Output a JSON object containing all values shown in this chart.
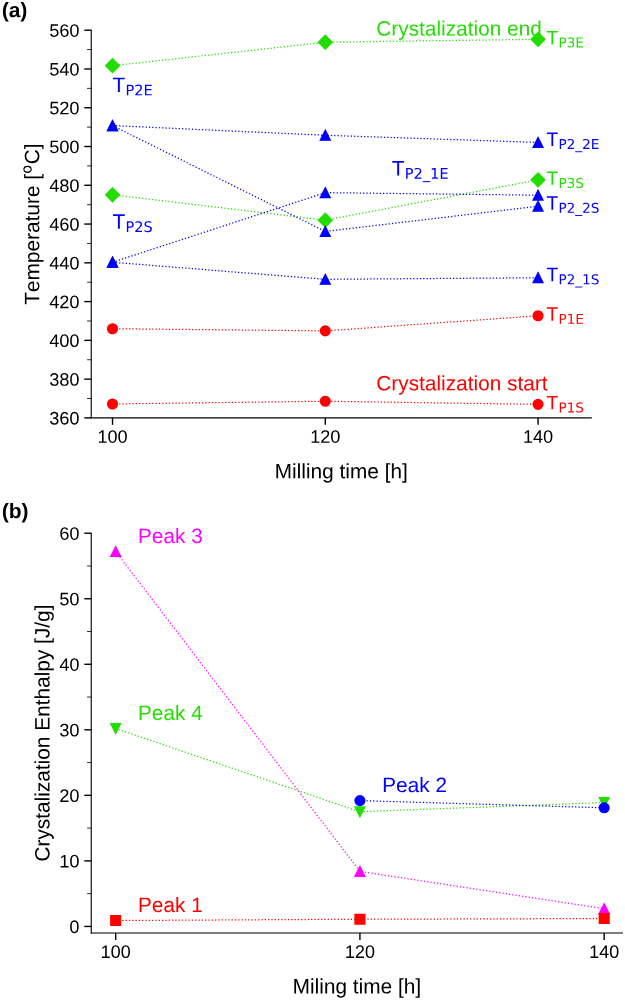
{
  "chart_data": [
    {
      "type": "line",
      "title": "(a)",
      "xlabel": "Milling time [h]",
      "ylabel": "Temperature [$^{o}$C]",
      "x": [
        100,
        120,
        140
      ],
      "xlim": [
        98,
        145
      ],
      "xticks": [
        100,
        120,
        140
      ],
      "ylim": [
        360,
        560
      ],
      "yticks": [
        360,
        380,
        400,
        420,
        440,
        460,
        480,
        500,
        520,
        540,
        560
      ],
      "line_style": "dotted",
      "grid": false,
      "series": [
        {
          "name": "T$_{P3E}$",
          "color": "#22dd00",
          "marker": "diamond",
          "values": [
            541.7,
            553.8,
            555.3
          ]
        },
        {
          "name": "T$_{P2_2E}$",
          "color": "#0000ff",
          "marker": "triangle",
          "values": [
            510.8,
            505.8,
            502.1
          ]
        },
        {
          "name": "T$_{P3S}$",
          "color": "#22dd00",
          "marker": "diamond",
          "values": [
            475.1,
            462,
            482.8
          ]
        },
        {
          "name": "T$_{P2_1E}$",
          "color": "#0000ff",
          "marker": "triangle",
          "values": [
            440.3,
            476.2,
            474.9
          ]
        },
        {
          "name": "T$_{P2_2S}$",
          "color": "#0000ff",
          "marker": "triangle",
          "values": [
            510.8,
            456.2,
            469.2
          ]
        },
        {
          "name": "T$_{P2_1S}$",
          "color": "#0000ff",
          "marker": "triangle",
          "values": [
            440.3,
            431.5,
            432.3
          ]
        },
        {
          "name": "T$_{P1E}$",
          "color": "#ff0000",
          "marker": "circle",
          "values": [
            406,
            404.9,
            412.7
          ]
        },
        {
          "name": "T$_{P1S}$",
          "color": "#ff0000",
          "marker": "circle",
          "values": [
            367.2,
            368.6,
            367
          ]
        }
      ],
      "annotations": [
        "Crystalization end",
        "Crystalization start",
        {
          "text": "T$_{P2E}$",
          "x": 100,
          "y": 510.8
        },
        {
          "text": "T$_{P2S}$",
          "x": 100,
          "y": 440.3
        }
      ]
    },
    {
      "type": "line",
      "title": "(b)",
      "xlabel": "Miling time [h]",
      "ylabel": "Crystalization Enthalpy [J/g]",
      "x": [
        100,
        120,
        140
      ],
      "xlim": [
        98,
        141.5
      ],
      "xticks": [
        100,
        120,
        140
      ],
      "ylim": [
        -1,
        60
      ],
      "yticks": [
        0,
        10,
        20,
        30,
        40,
        50,
        60
      ],
      "line_style": "dotted",
      "grid": false,
      "series": [
        {
          "name": "Peak 3",
          "color": "#ff00ff",
          "marker": "triangle",
          "values": [
            57.2,
            8.4,
            2.7
          ]
        },
        {
          "name": "Peak 4",
          "color": "#22dd00",
          "marker": "triangle_down",
          "values": [
            30.2,
            17.5,
            18.9
          ]
        },
        {
          "name": "Peak 2",
          "color": "#0000ff",
          "marker": "circle",
          "values": [
            null,
            19.2,
            18.1
          ]
        },
        {
          "name": "Peak 1",
          "color": "#ff0000",
          "marker": "square",
          "values": [
            0.9,
            1.1,
            1.2
          ]
        }
      ]
    }
  ]
}
